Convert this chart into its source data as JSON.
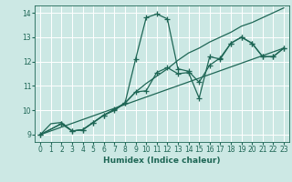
{
  "xlabel": "Humidex (Indice chaleur)",
  "bg_color": "#cce8e4",
  "grid_color": "#ffffff",
  "line_color": "#1e6655",
  "xlim": [
    -0.5,
    23.5
  ],
  "ylim": [
    8.7,
    14.3
  ],
  "xticks": [
    0,
    1,
    2,
    3,
    4,
    5,
    6,
    7,
    8,
    9,
    10,
    11,
    12,
    13,
    14,
    15,
    16,
    17,
    18,
    19,
    20,
    21,
    22,
    23
  ],
  "yticks": [
    9,
    10,
    11,
    12,
    13,
    14
  ],
  "series": [
    {
      "x": [
        0,
        2,
        3,
        4,
        5,
        6,
        7,
        8,
        9,
        10,
        11,
        12,
        13,
        14,
        15,
        16,
        17,
        18,
        19,
        20,
        21,
        22,
        23
      ],
      "y": [
        9.0,
        9.45,
        9.15,
        9.2,
        9.5,
        9.8,
        10.05,
        10.3,
        12.1,
        13.8,
        13.95,
        13.75,
        11.7,
        11.6,
        11.15,
        11.85,
        12.15,
        12.75,
        13.0,
        12.75,
        12.2,
        12.2,
        12.55
      ],
      "marker": true
    },
    {
      "x": [
        0,
        2,
        3,
        4,
        5,
        6,
        7,
        8,
        9,
        10,
        11,
        12,
        13,
        14,
        15,
        16,
        17,
        18,
        19,
        20,
        21,
        22,
        23
      ],
      "y": [
        9.0,
        9.45,
        9.15,
        9.2,
        9.5,
        9.8,
        10.0,
        10.3,
        10.75,
        10.8,
        11.55,
        11.75,
        11.5,
        11.55,
        10.5,
        12.2,
        12.1,
        12.75,
        13.0,
        12.75,
        12.2,
        12.2,
        12.55
      ],
      "marker": true
    },
    {
      "x": [
        0,
        1,
        2,
        3,
        4,
        5,
        6,
        7,
        8,
        9,
        10,
        11,
        12,
        13,
        14,
        15,
        16,
        17,
        18,
        19,
        20,
        21,
        22,
        23
      ],
      "y": [
        9.0,
        9.45,
        9.5,
        9.15,
        9.2,
        9.5,
        9.8,
        10.0,
        10.3,
        10.75,
        11.1,
        11.4,
        11.7,
        12.05,
        12.35,
        12.55,
        12.8,
        13.0,
        13.2,
        13.45,
        13.6,
        13.8,
        14.0,
        14.2
      ],
      "marker": false
    },
    {
      "x": [
        0,
        23
      ],
      "y": [
        9.0,
        12.55
      ],
      "marker": false
    }
  ],
  "markersize": 4,
  "linewidth": 0.9
}
